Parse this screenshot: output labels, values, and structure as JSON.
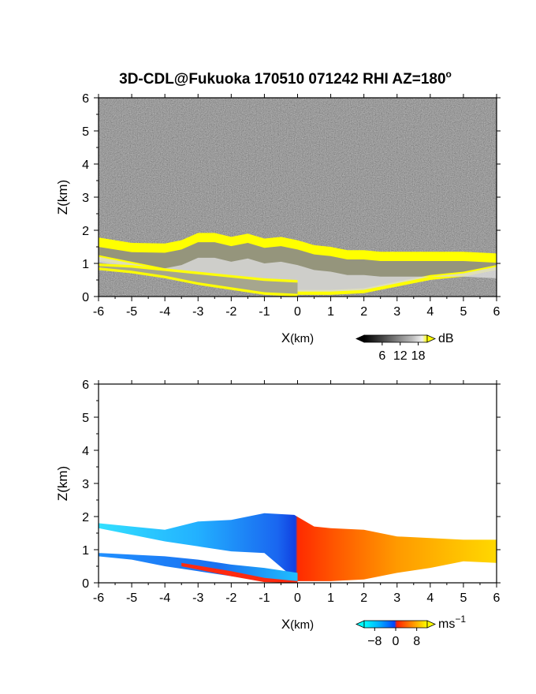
{
  "title": "3D-CDL@Fukuoka 170510 071242 RHI AZ=180",
  "title_suffix": "o",
  "chart_data": [
    {
      "type": "heatmap",
      "name": "reflectivity-rhi",
      "xlabel_main": "X",
      "xlabel_unit": "(km)",
      "ylabel": "Z(km)",
      "xlim": [
        -6,
        6
      ],
      "ylim": [
        0,
        6
      ],
      "xticks": [
        -6,
        -5,
        -4,
        -3,
        -2,
        -1,
        0,
        1,
        2,
        3,
        4,
        5,
        6
      ],
      "yticks": [
        0,
        1,
        2,
        3,
        4,
        5,
        6
      ],
      "x_tick_labels": [
        "-6",
        "-5",
        "-4",
        "-3",
        "-2",
        "-1",
        "0",
        "1",
        "2",
        "3",
        "4",
        "5",
        "6"
      ],
      "y_tick_labels": [
        "0",
        "1",
        "2",
        "3",
        "4",
        "5",
        "6"
      ],
      "background": "noise",
      "colormap": [
        "#000000",
        "#3a3a3a",
        "#7a7a7a",
        "#b8b8b8",
        "#f0f0f0",
        "#ffff00"
      ],
      "colorbar": {
        "unit": "dB",
        "ticks": [
          6,
          12,
          18
        ],
        "tick_labels": [
          "6",
          "12",
          "18"
        ],
        "range": [
          0,
          21
        ]
      },
      "cloud_top_km": [
        [
          -6,
          1.78
        ],
        [
          -5,
          1.62
        ],
        [
          -4,
          1.6
        ],
        [
          -3.5,
          1.7
        ],
        [
          -3,
          1.92
        ],
        [
          -2.5,
          1.92
        ],
        [
          -2,
          1.8
        ],
        [
          -1.5,
          1.9
        ],
        [
          -1,
          1.75
        ],
        [
          -0.5,
          1.8
        ],
        [
          0,
          1.7
        ],
        [
          0.5,
          1.55
        ],
        [
          1,
          1.5
        ],
        [
          1.5,
          1.4
        ],
        [
          2,
          1.4
        ],
        [
          2.5,
          1.35
        ],
        [
          3,
          1.35
        ],
        [
          4,
          1.35
        ],
        [
          5,
          1.35
        ],
        [
          6,
          1.3
        ]
      ],
      "cloud_bottom_km": [
        [
          -6,
          1.1
        ],
        [
          -5,
          0.9
        ],
        [
          -4,
          0.7
        ],
        [
          -3,
          0.4
        ],
        [
          -2,
          0.25
        ],
        [
          -1,
          0.1
        ],
        [
          0,
          0.05
        ],
        [
          1,
          0.05
        ],
        [
          2,
          0.1
        ],
        [
          3,
          0.3
        ],
        [
          4,
          0.5
        ],
        [
          5,
          0.6
        ],
        [
          6,
          0.8
        ]
      ],
      "lower_layer_top_km": [
        [
          -6,
          1.0
        ],
        [
          -5,
          0.95
        ],
        [
          -4,
          0.85
        ],
        [
          -3,
          0.75
        ],
        [
          -2,
          0.65
        ],
        [
          -1,
          0.55
        ],
        [
          0,
          0.5
        ]
      ],
      "lower_layer_bottom_km": [
        [
          -6,
          0.8
        ],
        [
          -5,
          0.7
        ],
        [
          -4,
          0.55
        ],
        [
          -3,
          0.35
        ],
        [
          -2,
          0.2
        ],
        [
          -1,
          0.05
        ],
        [
          0,
          0.0
        ]
      ]
    },
    {
      "type": "heatmap",
      "name": "doppler-velocity-rhi",
      "xlabel_main": "X",
      "xlabel_unit": "(km)",
      "ylabel": "Z(km)",
      "xlim": [
        -6,
        6
      ],
      "ylim": [
        0,
        6
      ],
      "xticks": [
        -6,
        -5,
        -4,
        -3,
        -2,
        -1,
        0,
        1,
        2,
        3,
        4,
        5,
        6
      ],
      "yticks": [
        0,
        1,
        2,
        3,
        4,
        5,
        6
      ],
      "x_tick_labels": [
        "-6",
        "-5",
        "-4",
        "-3",
        "-2",
        "-1",
        "0",
        "1",
        "2",
        "3",
        "4",
        "5",
        "6"
      ],
      "y_tick_labels": [
        "0",
        "1",
        "2",
        "3",
        "4",
        "5",
        "6"
      ],
      "background": "white",
      "colormap": [
        "#00ffff",
        "#00aaff",
        "#0044ff",
        "#ff2200",
        "#ff8800",
        "#ffff00"
      ],
      "colorbar": {
        "unit": "ms",
        "unit_sup": "−1",
        "ticks": [
          -8,
          0,
          8
        ],
        "tick_labels": [
          "−8",
          "0",
          "8"
        ],
        "range": [
          -12,
          12
        ]
      },
      "velocity_samples_ms": [
        [
          -6,
          -10
        ],
        [
          -4,
          -8
        ],
        [
          -2,
          -6
        ],
        [
          -1,
          -5
        ],
        [
          0,
          0
        ],
        [
          1,
          5
        ],
        [
          2,
          6
        ],
        [
          4,
          8
        ],
        [
          6,
          10
        ]
      ],
      "upper_band_top_km": [
        [
          -6,
          1.8
        ],
        [
          -5,
          1.7
        ],
        [
          -4,
          1.6
        ],
        [
          -3,
          1.85
        ],
        [
          -2,
          1.9
        ],
        [
          -1,
          2.1
        ],
        [
          -0.1,
          2.05
        ],
        [
          0.5,
          1.7
        ],
        [
          1,
          1.65
        ],
        [
          2,
          1.6
        ],
        [
          3,
          1.4
        ],
        [
          4,
          1.35
        ],
        [
          5,
          1.3
        ],
        [
          6,
          1.3
        ]
      ],
      "upper_band_bottom_km": [
        [
          -6,
          1.65
        ],
        [
          -5,
          1.45
        ],
        [
          -4,
          1.25
        ],
        [
          -3,
          1.1
        ],
        [
          -2,
          0.95
        ],
        [
          -1,
          0.9
        ],
        [
          0,
          0.05
        ],
        [
          1,
          0.05
        ],
        [
          2,
          0.1
        ],
        [
          3,
          0.3
        ],
        [
          4,
          0.45
        ],
        [
          5,
          0.65
        ],
        [
          6,
          0.6
        ]
      ],
      "lower_band_top_km": [
        [
          -6,
          0.9
        ],
        [
          -5,
          0.85
        ],
        [
          -4,
          0.8
        ],
        [
          -3,
          0.7
        ],
        [
          -2,
          0.55
        ],
        [
          -1,
          0.45
        ],
        [
          0,
          0.3
        ]
      ],
      "lower_band_bottom_km": [
        [
          -6,
          0.8
        ],
        [
          -5,
          0.7
        ],
        [
          -4,
          0.5
        ],
        [
          -3,
          0.35
        ],
        [
          -2,
          0.2
        ],
        [
          -1,
          0.05
        ],
        [
          0,
          0.0
        ]
      ]
    }
  ]
}
